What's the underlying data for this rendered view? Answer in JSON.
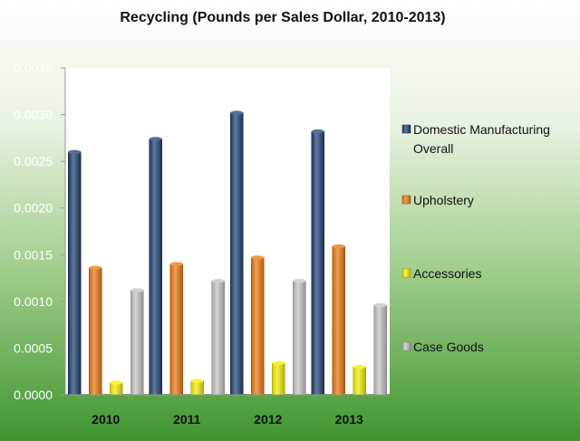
{
  "chart_data": {
    "type": "bar",
    "title": "Recycling (Pounds per Sales Dollar, 2010-2013)",
    "categories": [
      "2010",
      "2011",
      "2012",
      "2013"
    ],
    "series": [
      {
        "name": "Domestic Manufacturing Overall",
        "values": [
          0.0026,
          0.00274,
          0.00302,
          0.00282
        ],
        "color": "#1f3f6e"
      },
      {
        "name": "Upholstery",
        "values": [
          0.00136,
          0.0014,
          0.00147,
          0.00159
        ],
        "color": "#e8760e"
      },
      {
        "name": "Accessories",
        "values": [
          0.00013,
          0.00015,
          0.00034,
          0.0003
        ],
        "color": "#f0ec00"
      },
      {
        "name": "Case Goods",
        "values": [
          0.00112,
          0.00122,
          0.00122,
          0.00096
        ],
        "color": "#c2c2c2"
      }
    ],
    "yticks": [
      "0.0000",
      "0.0005",
      "0.0010",
      "0.0015",
      "0.0020",
      "0.0025",
      "0.0030",
      "0.0035"
    ],
    "ylim": [
      0,
      0.0035
    ],
    "grid": false,
    "legend_position": "right"
  }
}
